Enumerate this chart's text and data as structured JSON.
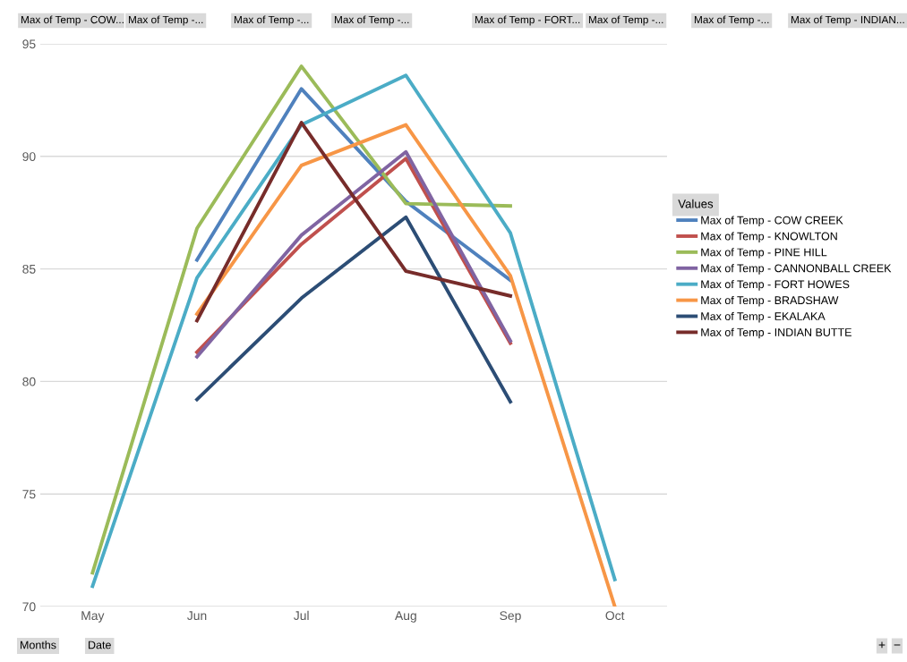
{
  "chart_data": {
    "type": "line",
    "categories": [
      "May",
      "Jun",
      "Jul",
      "Aug",
      "Sep",
      "Oct"
    ],
    "series": [
      {
        "name": "Max of Temp - COW CREEK",
        "color": "#4f81bd",
        "values": [
          null,
          85.4,
          93.0,
          88.0,
          84.5,
          null
        ]
      },
      {
        "name": "Max of Temp - KNOWLTON",
        "color": "#c0504d",
        "values": [
          null,
          81.3,
          86.1,
          89.9,
          81.7,
          null
        ]
      },
      {
        "name": "Max of Temp - PINE HILL",
        "color": "#9bbb59",
        "values": [
          71.5,
          86.8,
          94.0,
          87.9,
          87.8,
          null
        ]
      },
      {
        "name": "Max of Temp - CANNONBALL CREEK",
        "color": "#8064a2",
        "values": [
          null,
          81.1,
          86.5,
          90.2,
          81.8,
          null
        ]
      },
      {
        "name": "Max of Temp - FORT HOWES",
        "color": "#4bacc6",
        "values": [
          70.9,
          84.6,
          91.4,
          93.6,
          86.6,
          71.2
        ]
      },
      {
        "name": "Max of Temp - BRADSHAW",
        "color": "#f79646",
        "values": [
          null,
          83.0,
          89.6,
          91.4,
          84.7,
          70.0
        ]
      },
      {
        "name": "Max of Temp - EKALAKA",
        "color": "#2c4d75",
        "values": [
          null,
          79.2,
          83.7,
          87.3,
          79.1,
          null
        ]
      },
      {
        "name": "Max of Temp - INDIAN BUTTE",
        "color": "#772c2a",
        "values": [
          null,
          82.7,
          91.5,
          84.9,
          83.8,
          null
        ]
      }
    ],
    "ylim": [
      70,
      95
    ],
    "yticks": [
      70,
      75,
      80,
      85,
      90,
      95
    ],
    "grid": "y",
    "legend": "right",
    "legend_title": "Values",
    "marker": "none",
    "line_style": "solid",
    "annotations": [
      "Max of Temp - COW...",
      "Max of Temp -...",
      "Max of Temp -...",
      "Max of Temp -...",
      "Max of Temp - FORT...",
      "Max of Temp -...",
      "Max of Temp -...",
      "Max of Temp - INDIAN...",
      "Months",
      "Date",
      "+",
      "−"
    ]
  }
}
